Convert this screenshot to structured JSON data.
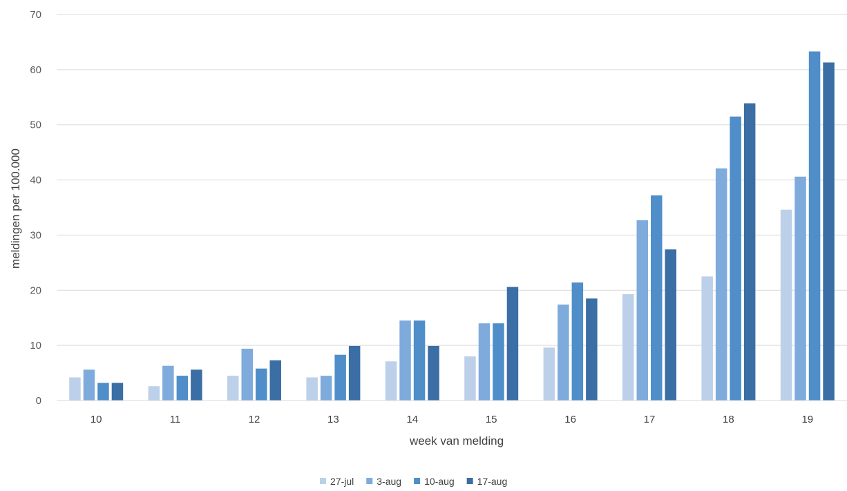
{
  "chart_data": {
    "type": "bar",
    "title": "",
    "xlabel": "week van melding",
    "ylabel": "meldingen per 100.000",
    "ylim": [
      0,
      70
    ],
    "yticks": [
      0,
      10,
      20,
      30,
      40,
      50,
      60,
      70
    ],
    "grid": true,
    "legend_position": "bottom",
    "categories": [
      "10",
      "11",
      "12",
      "13",
      "14",
      "15",
      "16",
      "17",
      "18",
      "19"
    ],
    "series": [
      {
        "name": "27-jul",
        "color": "#bdd0e9",
        "values": [
          4.2,
          2.6,
          4.5,
          4.2,
          7.1,
          8.0,
          9.6,
          19.3,
          22.5,
          34.6
        ]
      },
      {
        "name": "3-aug",
        "color": "#7fabdc",
        "values": [
          5.6,
          6.3,
          9.4,
          4.5,
          14.5,
          14.0,
          17.4,
          32.7,
          42.1,
          40.6
        ]
      },
      {
        "name": "10-aug",
        "color": "#4f8ec8",
        "values": [
          3.2,
          4.5,
          5.8,
          8.3,
          14.5,
          14.0,
          21.4,
          37.2,
          51.5,
          63.3
        ]
      },
      {
        "name": "17-aug",
        "color": "#3a6ea5",
        "values": [
          3.2,
          5.6,
          7.3,
          9.9,
          9.9,
          20.6,
          18.5,
          27.4,
          53.9,
          61.3
        ]
      }
    ]
  }
}
